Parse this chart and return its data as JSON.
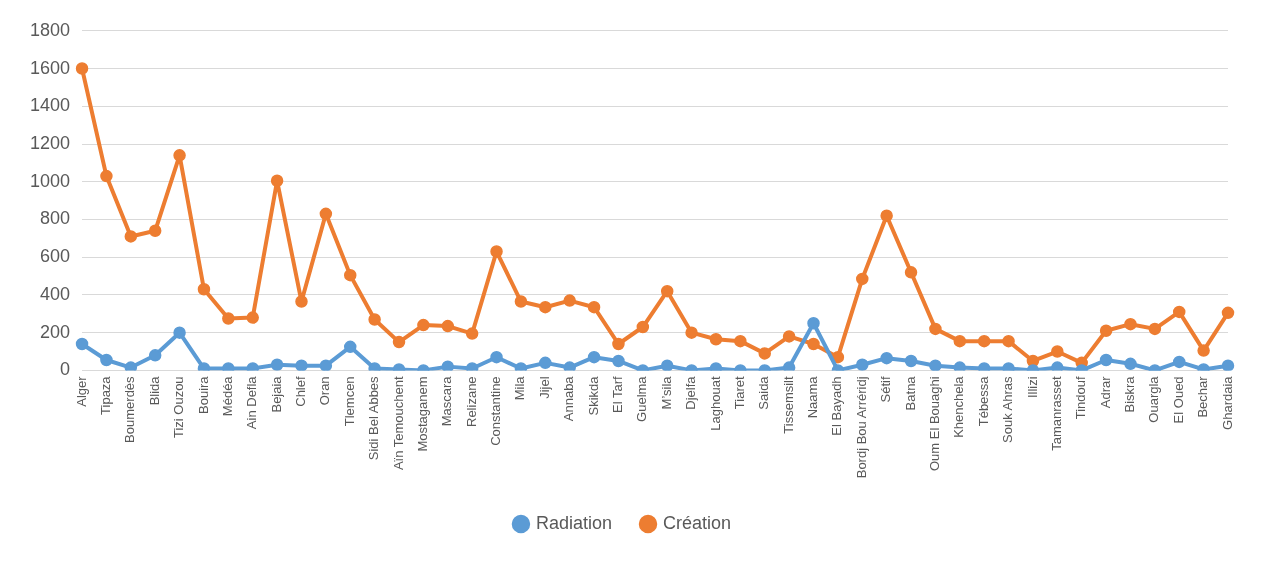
{
  "chart_data": {
    "type": "line",
    "categories": [
      "Alger",
      "Tipaza",
      "Boumerdès",
      "Blida",
      "Tizi Ouzou",
      "Bouira",
      "Médéa",
      "Ain Defla",
      "Bejaia",
      "Chlef",
      "Oran",
      "Tlemcen",
      "Sidi Bel Abbes",
      "Aïn Temouchent",
      "Mostaganem",
      "Mascara",
      "Relizane",
      "Constantine",
      "Mila",
      "Jijel",
      "Annaba",
      "Skikda",
      "El Tarf",
      "Guelma",
      "M’sila",
      "Djelfa",
      "Laghouat",
      "Tiaret",
      "Saida",
      "Tissemsilt",
      "Naama",
      "El Bayadh",
      "Bordj Bou Arréridj",
      "Sétif",
      "Batna",
      "Oum El Bouaghi",
      "Khenchela",
      "Tébessa",
      "Souk Ahras",
      "Illizi",
      "Tamanrasset",
      "Tindouf",
      "Adrar",
      "Biskra",
      "Ouargla",
      "El Oued",
      "Bechar",
      "Ghardaia"
    ],
    "series": [
      {
        "name": "Radiation",
        "color": "#5b9bd5",
        "values": [
          140,
          55,
          15,
          80,
          200,
          10,
          10,
          10,
          30,
          25,
          25,
          125,
          10,
          5,
          0,
          20,
          10,
          70,
          10,
          40,
          15,
          70,
          50,
          0,
          25,
          0,
          10,
          0,
          0,
          15,
          250,
          0,
          30,
          65,
          50,
          25,
          15,
          10,
          10,
          0,
          15,
          0,
          55,
          35,
          0,
          45,
          5,
          25
        ]
      },
      {
        "name": "Création",
        "color": "#ed7d31",
        "values": [
          1600,
          1030,
          710,
          740,
          1140,
          430,
          275,
          280,
          1005,
          365,
          830,
          505,
          270,
          150,
          240,
          235,
          195,
          630,
          365,
          335,
          370,
          335,
          140,
          230,
          420,
          200,
          165,
          155,
          90,
          180,
          140,
          70,
          485,
          820,
          520,
          220,
          155,
          155,
          155,
          50,
          100,
          40,
          210,
          245,
          220,
          310,
          105,
          305
        ]
      }
    ],
    "ylim": [
      0,
      1800
    ],
    "yticks": [
      0,
      200,
      400,
      600,
      800,
      1000,
      1200,
      1400,
      1600,
      1800
    ],
    "grid": "y",
    "legend": "bottom",
    "marker": "circle",
    "line_style": "solid"
  }
}
